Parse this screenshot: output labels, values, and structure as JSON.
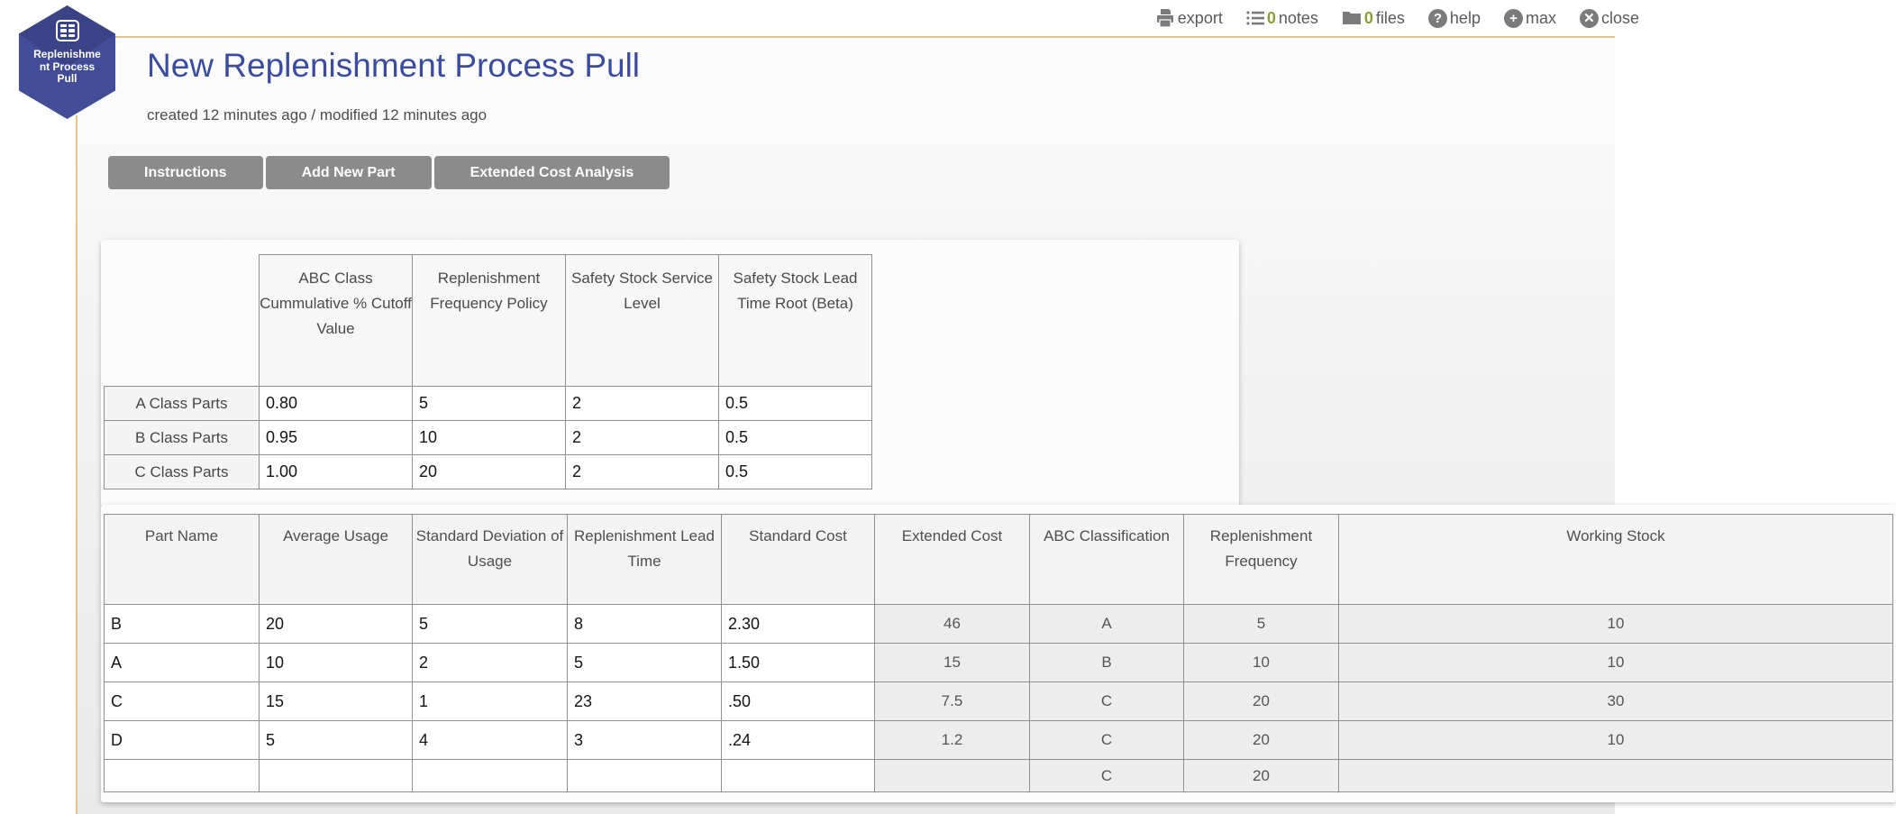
{
  "toolbar": {
    "export_label": "export",
    "notes_count": "0",
    "notes_label": "notes",
    "files_count": "0",
    "files_label": "files",
    "help_label": "help",
    "help_glyph": "?",
    "max_label": "max",
    "max_glyph": "+",
    "close_label": "close",
    "close_glyph": "✕"
  },
  "logo": {
    "line1": "Replenishme",
    "line2": "nt Process",
    "line3": "Pull"
  },
  "header": {
    "title": "New Replenishment Process Pull",
    "meta": "created 12 minutes ago / modified 12 minutes ago"
  },
  "actions": [
    {
      "label": "Instructions"
    },
    {
      "label": "Add New Part"
    },
    {
      "label": "Extended Cost Analysis"
    }
  ],
  "class_table": {
    "columns": [
      "ABC Class Cummulative % Cutoff Value",
      "Replenishment Frequency Policy",
      "Safety Stock Service Level",
      "Safety Stock Lead Time Root (Beta)"
    ],
    "rows": [
      {
        "label": "A Class Parts",
        "values": [
          "0.80",
          "5",
          "2",
          "0.5"
        ]
      },
      {
        "label": "B Class Parts",
        "values": [
          "0.95",
          "10",
          "2",
          "0.5"
        ]
      },
      {
        "label": "C Class Parts",
        "values": [
          "1.00",
          "20",
          "2",
          "0.5"
        ]
      }
    ]
  },
  "parts_table": {
    "columns": [
      "Part Name",
      "Average Usage",
      "Standard Deviation of Usage",
      "Replenishment Lead Time",
      "Standard Cost",
      "Extended Cost",
      "ABC Classification",
      "Replenishment Frequency",
      "Working Stock"
    ],
    "rows": [
      {
        "editable": [
          "B",
          "20",
          "5",
          "8",
          "2.30"
        ],
        "computed": [
          "46",
          "A",
          "5",
          "10"
        ]
      },
      {
        "editable": [
          "A",
          "10",
          "2",
          "5",
          "1.50"
        ],
        "computed": [
          "15",
          "B",
          "10",
          "10"
        ]
      },
      {
        "editable": [
          "C",
          "15",
          "1",
          "23",
          ".50"
        ],
        "computed": [
          "7.5",
          "C",
          "20",
          "30"
        ]
      },
      {
        "editable": [
          "D",
          "5",
          "4",
          "3",
          ".24"
        ],
        "computed": [
          "1.2",
          "C",
          "20",
          "10"
        ]
      },
      {
        "editable": [
          "",
          "",
          "",
          "",
          ""
        ],
        "computed": [
          "",
          "C",
          "20",
          ""
        ]
      }
    ]
  },
  "colors": {
    "accent_gold": "#e2c58c",
    "brand_indigo": "#434d97",
    "title_blue": "#3b4ca0",
    "button_gray": "#8b8b8b",
    "count_green": "#8f9d34"
  }
}
